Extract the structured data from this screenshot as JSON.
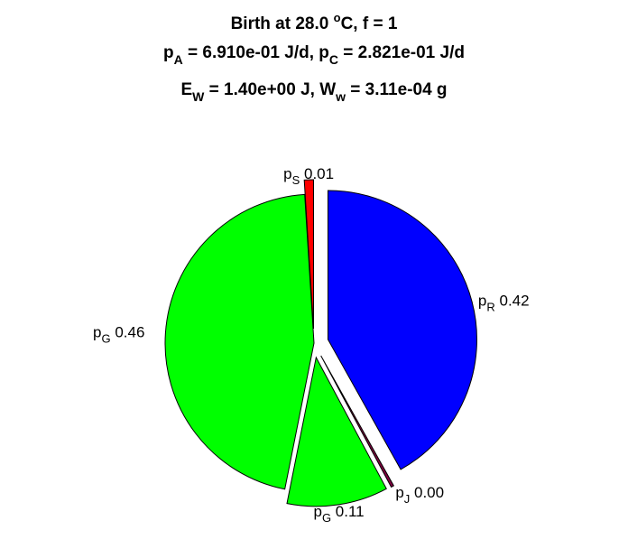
{
  "chart_data": {
    "type": "pie",
    "title": [
      [
        "Birth at 28.0 ",
        "o",
        "C, f = 1"
      ],
      [
        "p",
        "A",
        " = 6.910e-01 J/d, p",
        "C",
        " = 2.821e-01 J/d"
      ],
      [
        "E",
        "W",
        " = 1.40e+00 J, W",
        "w",
        " = 3.11e-04 g"
      ]
    ],
    "categories": [
      {
        "base": "p",
        "sub": "R"
      },
      {
        "base": "p",
        "sub": "J"
      },
      {
        "base": "p",
        "sub": "G"
      },
      {
        "base": "p",
        "sub": "G"
      },
      {
        "base": "p",
        "sub": "S"
      }
    ],
    "values": [
      0.42,
      0.003,
      0.11,
      0.46,
      0.01
    ],
    "value_labels": [
      "0.42",
      "0.00",
      "0.11",
      "0.46",
      "0.01"
    ],
    "colors": [
      "#0000ff",
      "#800040",
      "#00ff00",
      "#00ff00",
      "#ff0000"
    ],
    "explode": [
      true,
      true,
      true,
      false,
      true
    ]
  }
}
